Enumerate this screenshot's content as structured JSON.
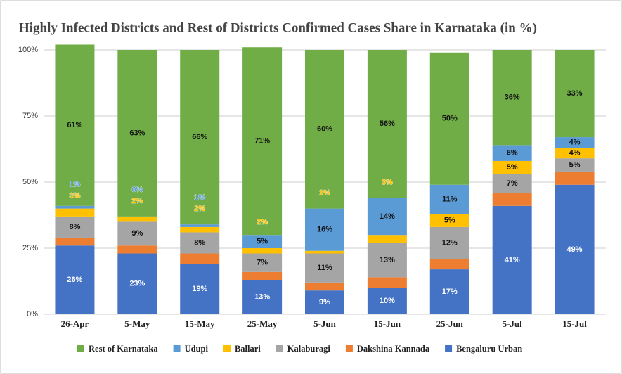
{
  "chart_data": {
    "type": "stacked_bar",
    "title": "Highly Infected Districts and Rest of Districts Confirmed Cases Share in Karnataka (in %)",
    "categories": [
      "26-Apr",
      "5-May",
      "15-May",
      "25-May",
      "5-Jun",
      "15-Jun",
      "25-Jun",
      "5-Jul",
      "15-Jul"
    ],
    "series": [
      {
        "name": "Rest of Karnataka",
        "color": "#70ad47",
        "values": [
          61,
          63,
          66,
          71,
          60,
          56,
          50,
          36,
          33
        ],
        "value_labels": [
          "61%",
          "63%",
          "66%",
          "71%",
          "60%",
          "56%",
          "50%",
          "36%",
          "33%"
        ]
      },
      {
        "name": "Udupi",
        "color": "#5b9bd5",
        "values": [
          1,
          0,
          1,
          5,
          16,
          14,
          11,
          6,
          4
        ],
        "value_labels": [
          "1%",
          "0%",
          "1%",
          "5%",
          "16%",
          "14%",
          "11%",
          "6%",
          "4%"
        ]
      },
      {
        "name": "Ballari",
        "color": "#ffc000",
        "values": [
          3,
          2,
          2,
          2,
          1,
          3,
          5,
          5,
          4
        ],
        "value_labels": [
          "3%",
          "2%",
          "2%",
          "2%",
          "1%",
          "3%",
          "5%",
          "5%",
          "4%"
        ]
      },
      {
        "name": "Kalaburagi",
        "color": "#a5a5a5",
        "values": [
          8,
          9,
          8,
          7,
          11,
          13,
          12,
          7,
          5
        ],
        "value_labels": [
          "8%",
          "9%",
          "8%",
          "7%",
          "11%",
          "13%",
          "12%",
          "7%",
          "5%"
        ]
      },
      {
        "name": "Dakshina Kannada",
        "color": "#ed7d31",
        "values": [
          3,
          3,
          4,
          3,
          3,
          4,
          4,
          5,
          5
        ]
      },
      {
        "name": "Bengaluru Urban",
        "color": "#4472c4",
        "values": [
          26,
          23,
          19,
          13,
          9,
          10,
          17,
          41,
          49
        ],
        "value_labels": [
          "26%",
          "23%",
          "19%",
          "13%",
          "9%",
          "10%",
          "17%",
          "41%",
          "49%"
        ]
      }
    ],
    "ylim": [
      0,
      100
    ],
    "yticks": [
      {
        "value": 0,
        "label": "0%"
      },
      {
        "value": 25,
        "label": "25%"
      },
      {
        "value": 50,
        "label": "50%"
      },
      {
        "value": 75,
        "label": "75%"
      },
      {
        "value": 100,
        "label": "100%"
      }
    ],
    "grid": true,
    "legend": "bottom"
  }
}
